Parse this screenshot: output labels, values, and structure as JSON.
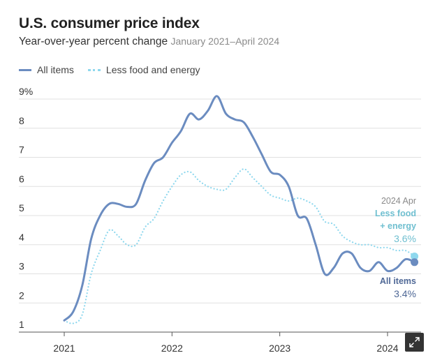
{
  "chart_data": {
    "type": "line",
    "title": "U.S. consumer price index",
    "subtitle": "Year-over-year percent change",
    "date_range": "January 2021–April 2024",
    "ylim": [
      1,
      9
    ],
    "yticks": [
      "9%",
      "8",
      "7",
      "6",
      "5",
      "4",
      "3",
      "2",
      "1"
    ],
    "ytick_values": [
      9,
      8,
      7,
      6,
      5,
      4,
      3,
      2,
      1
    ],
    "xticks": [
      "2021",
      "2022",
      "2023",
      "2024"
    ],
    "xtick_values": [
      2021,
      2022,
      2023,
      2024
    ],
    "series": [
      {
        "name": "All items",
        "color": "#6b8cc0",
        "x": [
          2021.0,
          2021.083,
          2021.167,
          2021.25,
          2021.333,
          2021.417,
          2021.5,
          2021.583,
          2021.667,
          2021.75,
          2021.833,
          2021.917,
          2022.0,
          2022.083,
          2022.167,
          2022.25,
          2022.333,
          2022.417,
          2022.5,
          2022.583,
          2022.667,
          2022.75,
          2022.833,
          2022.917,
          2023.0,
          2023.083,
          2023.167,
          2023.25,
          2023.333,
          2023.417,
          2023.5,
          2023.583,
          2023.667,
          2023.75,
          2023.833,
          2023.917,
          2024.0,
          2024.083,
          2024.167,
          2024.25
        ],
        "values": [
          1.4,
          1.7,
          2.6,
          4.2,
          5.0,
          5.4,
          5.4,
          5.3,
          5.4,
          6.2,
          6.8,
          7.0,
          7.5,
          7.9,
          8.5,
          8.3,
          8.6,
          9.1,
          8.5,
          8.3,
          8.2,
          7.7,
          7.1,
          6.5,
          6.4,
          6.0,
          5.0,
          4.9,
          4.0,
          3.0,
          3.2,
          3.7,
          3.7,
          3.2,
          3.1,
          3.4,
          3.1,
          3.2,
          3.5,
          3.4
        ]
      },
      {
        "name": "Less food and energy",
        "color": "#8fd8ee",
        "x": [
          2021.0,
          2021.083,
          2021.167,
          2021.25,
          2021.333,
          2021.417,
          2021.5,
          2021.583,
          2021.667,
          2021.75,
          2021.833,
          2021.917,
          2022.0,
          2022.083,
          2022.167,
          2022.25,
          2022.333,
          2022.417,
          2022.5,
          2022.583,
          2022.667,
          2022.75,
          2022.833,
          2022.917,
          2023.0,
          2023.083,
          2023.167,
          2023.25,
          2023.333,
          2023.417,
          2023.5,
          2023.583,
          2023.667,
          2023.75,
          2023.833,
          2023.917,
          2024.0,
          2024.083,
          2024.167,
          2024.25
        ],
        "values": [
          1.4,
          1.3,
          1.6,
          3.0,
          3.8,
          4.5,
          4.3,
          4.0,
          4.0,
          4.6,
          4.9,
          5.5,
          6.0,
          6.4,
          6.5,
          6.2,
          6.0,
          5.9,
          5.9,
          6.3,
          6.6,
          6.3,
          6.0,
          5.7,
          5.6,
          5.5,
          5.6,
          5.5,
          5.3,
          4.8,
          4.7,
          4.3,
          4.1,
          4.0,
          4.0,
          3.9,
          3.9,
          3.8,
          3.8,
          3.6
        ]
      }
    ],
    "annotations": {
      "date_label": "2024 Apr",
      "core_label_line1": "Less food",
      "core_label_line2": "+ energy",
      "core_value": "3.6%",
      "all_label": "All items",
      "all_value": "3.4%"
    }
  },
  "legend": {
    "all_items": "All items",
    "core": "Less food and energy"
  },
  "colors": {
    "all_items": "#6b8cc0",
    "core": "#8fd8ee",
    "core_text": "#6fbfd0",
    "all_text": "#4f6896",
    "grid": "#e0e0e0",
    "axis": "#555555",
    "muted_text": "#8a8a8a"
  },
  "icons": {
    "expand": "expand-icon"
  }
}
